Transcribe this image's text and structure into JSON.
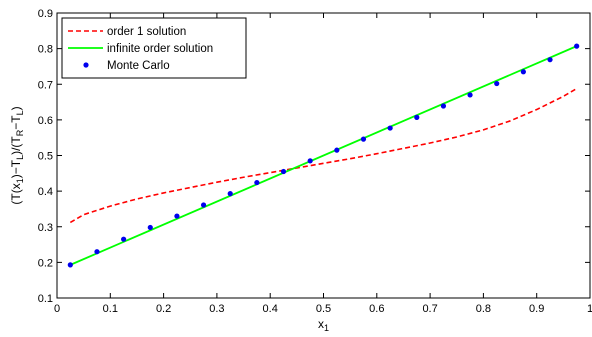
{
  "chart_data": {
    "type": "line",
    "xlabel": "x",
    "xlabel_sub": "1",
    "ylabel_parts": [
      {
        "t": "(T(x"
      },
      {
        "t": "1",
        "sub": true
      },
      {
        "t": ")−T"
      },
      {
        "t": "L",
        "sub": true
      },
      {
        "t": ")/(T"
      },
      {
        "t": "R",
        "sub": true
      },
      {
        "t": "−T"
      },
      {
        "t": "L",
        "sub": true
      },
      {
        "t": ")"
      }
    ],
    "xlim": [
      0,
      1
    ],
    "ylim": [
      0.1,
      0.9
    ],
    "xticks": [
      0,
      0.1,
      0.2,
      0.3,
      0.4,
      0.5,
      0.6,
      0.7,
      0.8,
      0.9,
      1
    ],
    "xtick_labels": [
      "0",
      "0.1",
      "0.2",
      "0.3",
      "0.4",
      "0.5",
      "0.6",
      "0.7",
      "0.8",
      "0.9",
      "1"
    ],
    "yticks": [
      0.1,
      0.2,
      0.3,
      0.4,
      0.5,
      0.6,
      0.7,
      0.8,
      0.9
    ],
    "ytick_labels": [
      "0.1",
      "0.2",
      "0.3",
      "0.4",
      "0.5",
      "0.6",
      "0.7",
      "0.8",
      "0.9"
    ],
    "grid": false,
    "legend": {
      "position": "top-left"
    },
    "series": [
      {
        "name": "order 1 solution",
        "style": "dashed",
        "color": "#ff0000",
        "x": [
          0.025,
          0.05,
          0.1,
          0.15,
          0.2,
          0.25,
          0.3,
          0.35,
          0.4,
          0.45,
          0.5,
          0.55,
          0.6,
          0.65,
          0.7,
          0.75,
          0.8,
          0.85,
          0.9,
          0.95,
          0.975
        ],
        "y": [
          0.312,
          0.334,
          0.358,
          0.378,
          0.395,
          0.41,
          0.425,
          0.439,
          0.452,
          0.465,
          0.478,
          0.491,
          0.505,
          0.52,
          0.535,
          0.552,
          0.572,
          0.597,
          0.629,
          0.666,
          0.688
        ]
      },
      {
        "name": "infinite order solution",
        "style": "solid",
        "color": "#00ff00",
        "x": [
          0.025,
          0.975
        ],
        "y": [
          0.193,
          0.807
        ]
      },
      {
        "name": "Monte Carlo",
        "style": "markers",
        "color": "#0000ee",
        "x": [
          0.025,
          0.075,
          0.125,
          0.175,
          0.225,
          0.275,
          0.325,
          0.375,
          0.425,
          0.475,
          0.525,
          0.575,
          0.625,
          0.675,
          0.725,
          0.775,
          0.825,
          0.875,
          0.925,
          0.975
        ],
        "y": [
          0.193,
          0.23,
          0.265,
          0.298,
          0.33,
          0.361,
          0.393,
          0.424,
          0.455,
          0.485,
          0.515,
          0.546,
          0.577,
          0.607,
          0.639,
          0.67,
          0.702,
          0.735,
          0.769,
          0.807
        ]
      }
    ]
  }
}
